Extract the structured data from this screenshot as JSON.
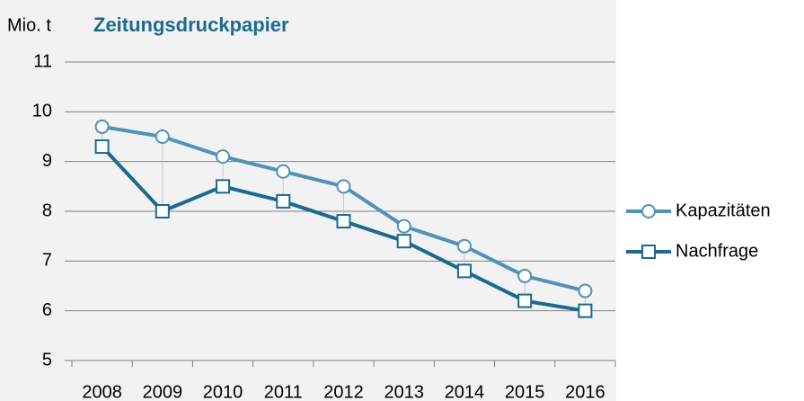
{
  "chart_data": {
    "type": "line",
    "title": "Zeitungsdruckpapier",
    "y_label": "Mio. t",
    "categories": [
      "2008",
      "2009",
      "2010",
      "2011",
      "2012",
      "2013",
      "2014",
      "2015",
      "2016"
    ],
    "series": [
      {
        "name": "Kapazitäten",
        "color": "#5092b8",
        "marker": "circle",
        "values": [
          9.7,
          9.5,
          9.1,
          8.8,
          8.5,
          7.7,
          7.3,
          6.7,
          6.4
        ]
      },
      {
        "name": "Nachfrage",
        "color": "#1c6a8f",
        "marker": "square",
        "values": [
          9.3,
          8.0,
          8.5,
          8.2,
          7.8,
          7.4,
          6.8,
          6.2,
          6.0
        ]
      }
    ],
    "ylim": [
      5,
      11
    ],
    "yticks": [
      5,
      6,
      7,
      8,
      9,
      10,
      11
    ],
    "grid": true,
    "legend": "right"
  }
}
